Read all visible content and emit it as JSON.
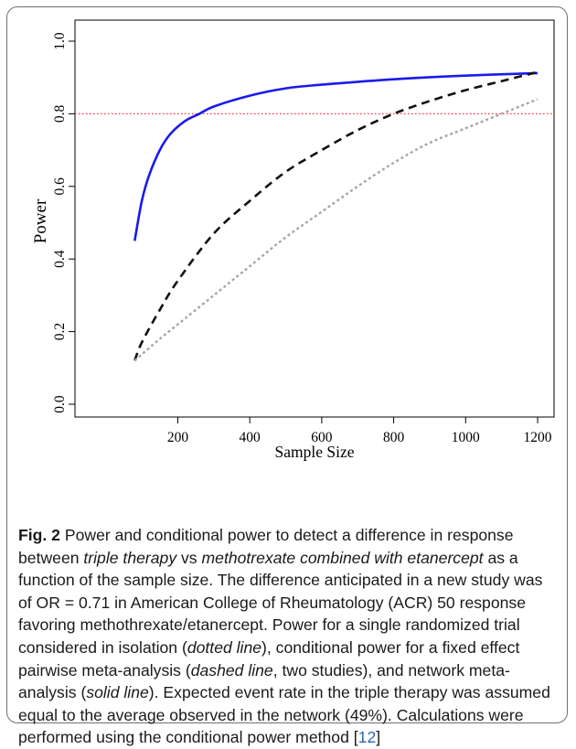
{
  "chart_data": {
    "type": "line",
    "xlabel": "Sample Size",
    "ylabel": "Power",
    "xlim": [
      80,
      1200
    ],
    "ylim": [
      0,
      1
    ],
    "x_ticks": [
      200,
      400,
      600,
      800,
      1000,
      1200
    ],
    "y_ticks": [
      0.0,
      0.2,
      0.4,
      0.6,
      0.8,
      1.0
    ],
    "x_tick_labels": [
      "200",
      "400",
      "600",
      "800",
      "1000",
      "1200"
    ],
    "y_tick_labels": [
      "0.0",
      "0.2",
      "0.4",
      "0.6",
      "0.8",
      "1.0"
    ],
    "reference_line": {
      "y": 0.8,
      "color": "#ff3333",
      "style": "dotted"
    },
    "grid": false,
    "series": [
      {
        "style": "solid",
        "color": "#1a1aee",
        "x": [
          80,
          100,
          120,
          150,
          180,
          220,
          260,
          300,
          400,
          500,
          600,
          800,
          1000,
          1200
        ],
        "y": [
          0.45,
          0.56,
          0.63,
          0.7,
          0.745,
          0.78,
          0.8,
          0.82,
          0.85,
          0.87,
          0.88,
          0.895,
          0.905,
          0.912
        ]
      },
      {
        "style": "dashed",
        "color": "#111111",
        "x": [
          80,
          100,
          150,
          200,
          300,
          400,
          500,
          600,
          700,
          800,
          900,
          1000,
          1100,
          1200
        ],
        "y": [
          0.12,
          0.17,
          0.26,
          0.34,
          0.47,
          0.56,
          0.64,
          0.7,
          0.755,
          0.8,
          0.835,
          0.865,
          0.89,
          0.915
        ]
      },
      {
        "style": "dotted",
        "color": "#a6a6a6",
        "x": [
          80,
          150,
          200,
          300,
          400,
          500,
          600,
          700,
          800,
          900,
          1000,
          1100,
          1200
        ],
        "y": [
          0.12,
          0.18,
          0.22,
          0.3,
          0.38,
          0.46,
          0.53,
          0.6,
          0.665,
          0.72,
          0.76,
          0.8,
          0.84
        ]
      }
    ]
  },
  "caption": {
    "fig_label": "Fig. 2",
    "part1": " Power and conditional power to detect a difference in response between ",
    "em1": "triple therapy",
    "part2": " vs ",
    "em2": "methotrexate combined with etanercept",
    "part3": " as a function of the sample size. The difference anticipated in a new study was of OR = 0.71 in American College of Rheumatology (ACR) 50 response favoring methothrexate/etanercept. Power for a single randomized trial considered in isolation (",
    "em3": "dotted line",
    "part4": "), conditional power for a fixed effect pairwise meta-analysis (",
    "em4": "dashed line",
    "part5": ", two studies), and network meta-analysis (",
    "em5": "solid line",
    "part6": "). Expected event rate in the triple therapy was assumed equal to the average observed in the network (49%). Calculations were performed using the conditional power method [",
    "ref": "12",
    "part7": "]"
  }
}
